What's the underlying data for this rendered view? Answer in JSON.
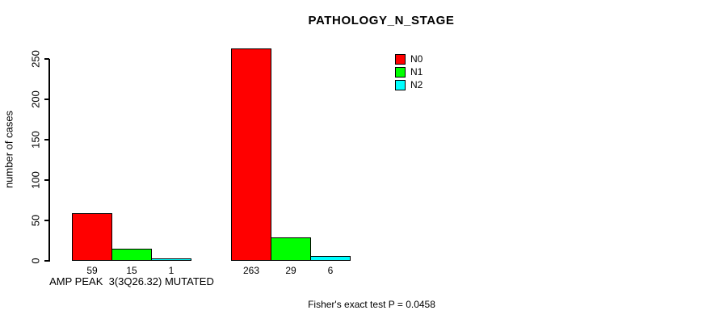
{
  "chart_data": {
    "type": "bar",
    "title": "PATHOLOGY_N_STAGE",
    "ylabel": "number of cases",
    "xlabel": "",
    "ylim": [
      0,
      250
    ],
    "yticks": [
      0,
      50,
      100,
      150,
      200,
      250
    ],
    "grid": false,
    "legend_position": "top-right",
    "categories": [
      "AMP PEAK  3(3Q26.32) MUTATED",
      ""
    ],
    "series": [
      {
        "name": "N0",
        "color": "#ff0000",
        "values": [
          59,
          263
        ]
      },
      {
        "name": "N1",
        "color": "#00ff00",
        "values": [
          15,
          29
        ]
      },
      {
        "name": "N2",
        "color": "#00ffff",
        "values": [
          1,
          6
        ]
      }
    ],
    "bar_value_labels": [
      [
        "59",
        "15",
        "1"
      ],
      [
        "263",
        "29",
        "6"
      ]
    ],
    "annotation": "Fisher's exact test P = 0.0458"
  }
}
